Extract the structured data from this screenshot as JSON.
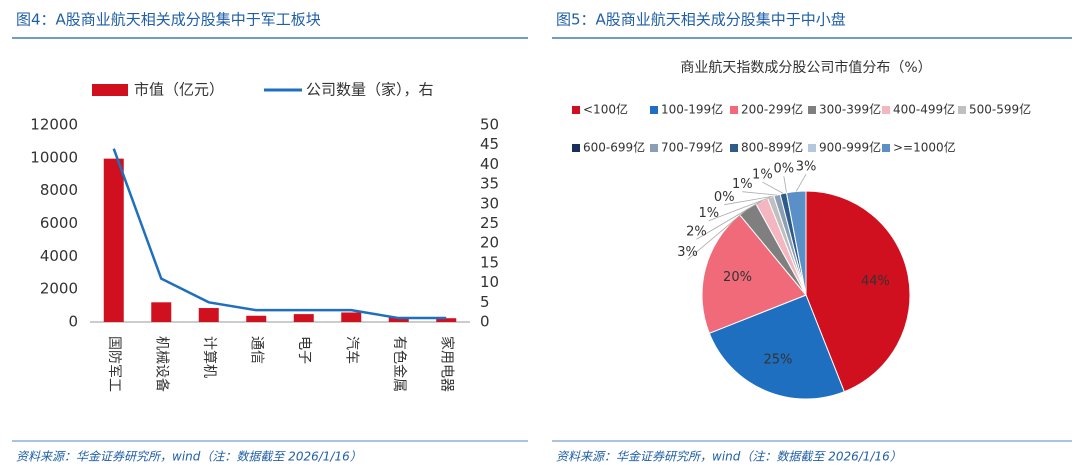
{
  "chart_data": [
    {
      "type": "bar",
      "title": "图4：A股商业航天相关成分股集中于军工板块",
      "categories": [
        "国防军工",
        "机械设备",
        "计算机",
        "通信",
        "电子",
        "汽车",
        "有色金属",
        "家用电器"
      ],
      "series": [
        {
          "name": "市值（亿元）",
          "type": "bar",
          "color": "#d0101e",
          "values": [
            9950,
            1200,
            850,
            380,
            480,
            580,
            280,
            230
          ]
        },
        {
          "name": "公司数量（家），右",
          "type": "line",
          "axis": "y2",
          "color": "#1f6fbf",
          "values": [
            44,
            11,
            5,
            3,
            3,
            3,
            1,
            1
          ]
        }
      ],
      "ylim": [
        0,
        12000
      ],
      "yticks": [
        0,
        2000,
        4000,
        6000,
        8000,
        10000,
        12000
      ],
      "y2lim": [
        0,
        50
      ],
      "y2ticks": [
        0,
        5,
        10,
        15,
        20,
        25,
        30,
        35,
        40,
        45,
        50
      ],
      "legend": "top",
      "source": "资料来源：华金证券研究所，wind（注：数据截至 2026/1/16）"
    },
    {
      "type": "pie",
      "title": "图5：A股商业航天相关成分股集中于中小盘",
      "subtitle": "商业航天指数成分股公司市值分布（%）",
      "categories": [
        "<100亿",
        "100-199亿",
        "200-299亿",
        "300-399亿",
        "400-499亿",
        "500-599亿",
        "600-699亿",
        "700-799亿",
        "800-899亿",
        "900-999亿",
        ">=1000亿"
      ],
      "values": [
        44,
        25,
        20,
        3,
        2,
        1,
        0,
        1,
        1,
        0,
        3
      ],
      "value_labels": [
        "44%",
        "25%",
        "20%",
        "3%",
        "2%",
        "1%",
        "0%",
        "1%",
        "1%",
        "0%",
        "3%"
      ],
      "colors": [
        "#d0101e",
        "#1e6fbf",
        "#f06a7a",
        "#7f7f7f",
        "#f4b6c0",
        "#bfbfbf",
        "#1a2f5c",
        "#8a9fb5",
        "#2f5b8a",
        "#b4c7dc",
        "#5b8fc7"
      ],
      "legend": "top",
      "source": "资料来源：华金证券研究所，wind（注：数据截至 2026/1/16）"
    }
  ]
}
